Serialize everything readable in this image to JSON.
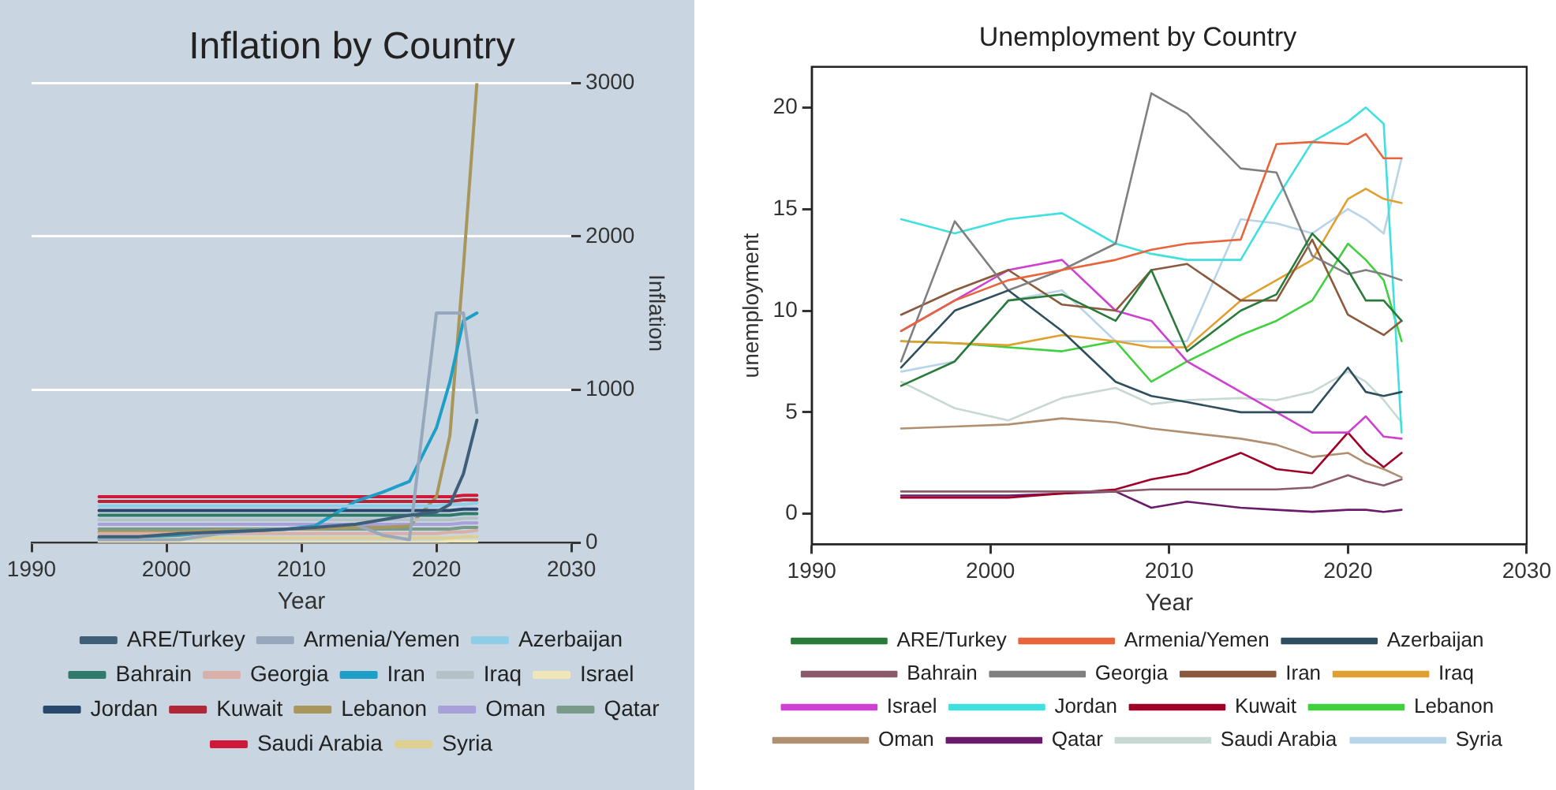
{
  "chart_data": [
    {
      "type": "line",
      "title": "Inflation by Country",
      "xlabel": "Year",
      "ylabel": "Inflation",
      "x": [
        1995,
        1998,
        2001,
        2004,
        2007,
        2009,
        2011,
        2014,
        2016,
        2018,
        2020,
        2021,
        2022,
        2023
      ],
      "xlim": [
        1990,
        2030
      ],
      "xticks": [
        1990,
        2000,
        2010,
        2020,
        2030
      ],
      "ylim": [
        0,
        3000
      ],
      "yticks": [
        0,
        1000,
        2000,
        3000
      ],
      "grid": "y",
      "legend": "bottom",
      "marker": "none",
      "series": [
        {
          "name": "ARE/Turkey",
          "color": "#3f5f78",
          "values": [
            40,
            40,
            60,
            70,
            80,
            90,
            100,
            120,
            150,
            180,
            200,
            250,
            450,
            800
          ]
        },
        {
          "name": "Armenia/Yemen",
          "color": "#98a8bc",
          "values": [
            20,
            20,
            20,
            60,
            80,
            90,
            100,
            120,
            50,
            20,
            1500,
            1500,
            1500,
            850
          ]
        },
        {
          "name": "Azerbaijan",
          "color": "#8ecde8",
          "values": [
            240,
            240,
            240,
            240,
            240,
            240,
            240,
            240,
            240,
            240,
            240,
            250,
            250,
            260
          ]
        },
        {
          "name": "Bahrain",
          "color": "#2f7a6a",
          "values": [
            180,
            180,
            180,
            180,
            180,
            180,
            180,
            180,
            180,
            180,
            180,
            180,
            190,
            190
          ]
        },
        {
          "name": "Georgia",
          "color": "#d8b0a8",
          "values": [
            60,
            60,
            60,
            60,
            60,
            60,
            60,
            60,
            60,
            60,
            60,
            70,
            70,
            80
          ]
        },
        {
          "name": "Iran",
          "color": "#1e9fc8",
          "values": [
            30,
            40,
            50,
            70,
            80,
            90,
            110,
            270,
            330,
            400,
            750,
            1050,
            1450,
            1500
          ]
        },
        {
          "name": "Iraq",
          "color": "#b4c2c8",
          "values": [
            150,
            150,
            150,
            150,
            150,
            150,
            150,
            150,
            150,
            150,
            150,
            150,
            160,
            160
          ]
        },
        {
          "name": "Israel",
          "color": "#f0e6b8",
          "values": [
            0,
            0,
            0,
            0,
            0,
            0,
            0,
            0,
            0,
            0,
            0,
            10,
            10,
            10
          ]
        },
        {
          "name": "Jordan",
          "color": "#28486e",
          "values": [
            210,
            210,
            210,
            210,
            210,
            210,
            210,
            210,
            210,
            210,
            210,
            210,
            220,
            220
          ]
        },
        {
          "name": "Kuwait",
          "color": "#b02838",
          "values": [
            270,
            270,
            270,
            270,
            270,
            270,
            270,
            270,
            270,
            270,
            270,
            270,
            280,
            280
          ]
        },
        {
          "name": "Lebanon",
          "color": "#a8965a",
          "values": [
            70,
            70,
            70,
            80,
            80,
            90,
            90,
            100,
            100,
            110,
            300,
            700,
            1800,
            3000
          ]
        },
        {
          "name": "Oman",
          "color": "#a8a0d8",
          "values": [
            120,
            120,
            120,
            120,
            120,
            120,
            120,
            120,
            120,
            120,
            120,
            120,
            130,
            130
          ]
        },
        {
          "name": "Qatar",
          "color": "#7a9a8a",
          "values": [
            90,
            90,
            90,
            90,
            90,
            90,
            90,
            90,
            90,
            90,
            90,
            90,
            100,
            100
          ]
        },
        {
          "name": "Saudi Arabia",
          "color": "#d01838",
          "values": [
            300,
            300,
            300,
            300,
            300,
            300,
            300,
            300,
            300,
            300,
            300,
            300,
            310,
            310
          ]
        },
        {
          "name": "Syria",
          "color": "#e0d090",
          "values": [
            30,
            30,
            30,
            30,
            30,
            30,
            30,
            30,
            30,
            30,
            30,
            30,
            40,
            40
          ]
        }
      ]
    },
    {
      "type": "line",
      "title": "Unemployment by Country",
      "xlabel": "Year",
      "ylabel": "unemployment",
      "x": [
        1995,
        1998,
        2001,
        2004,
        2007,
        2009,
        2011,
        2014,
        2016,
        2018,
        2020,
        2021,
        2022,
        2023
      ],
      "xlim": [
        1990,
        2030
      ],
      "ylim": [
        -1.5,
        22
      ],
      "xticks": [
        1990,
        2000,
        2010,
        2020,
        2030
      ],
      "yticks": [
        0,
        5,
        10,
        15,
        20
      ],
      "legend": "bottom",
      "marker": "none",
      "series": [
        {
          "name": "ARE/Turkey",
          "color": "#2a7a3a",
          "values": [
            6.3,
            7.5,
            10.5,
            10.8,
            9.5,
            12,
            8,
            10,
            10.8,
            13.8,
            12,
            10.5,
            10.5,
            9.5
          ]
        },
        {
          "name": "Armenia/Yemen",
          "color": "#e8643c",
          "values": [
            9,
            10.5,
            11.5,
            12,
            12.5,
            13,
            13.3,
            13.5,
            18.2,
            18.3,
            18.2,
            18.7,
            17.5,
            17.5
          ]
        },
        {
          "name": "Azerbaijan",
          "color": "#2f4f5f",
          "values": [
            7.2,
            10,
            11,
            9,
            6.5,
            5.8,
            5.5,
            5,
            5,
            5,
            7.2,
            6,
            5.8,
            6
          ]
        },
        {
          "name": "Bahrain",
          "color": "#8b5a6b",
          "values": [
            1.1,
            1.1,
            1.1,
            1.1,
            1.1,
            1.2,
            1.2,
            1.2,
            1.2,
            1.3,
            1.9,
            1.6,
            1.4,
            1.7
          ]
        },
        {
          "name": "Georgia",
          "color": "#808080",
          "values": [
            7.5,
            14.4,
            11,
            12,
            13.3,
            20.7,
            19.7,
            17,
            16.8,
            12.7,
            11.8,
            12,
            11.8,
            11.5
          ]
        },
        {
          "name": "Iran",
          "color": "#8b5a3c",
          "values": [
            9.8,
            11,
            12,
            10.3,
            10,
            12,
            12.3,
            10.5,
            10.5,
            13.5,
            9.8,
            9.3,
            8.8,
            9.5
          ]
        },
        {
          "name": "Iraq",
          "color": "#e0a030",
          "values": [
            8.5,
            8.4,
            8.3,
            8.8,
            8.5,
            8.2,
            8.2,
            10.5,
            11.5,
            12.5,
            15.5,
            16,
            15.5,
            15.3
          ]
        },
        {
          "name": "Israel",
          "color": "#d040d0",
          "values": [
            9,
            10.5,
            12,
            12.5,
            10,
            9.5,
            7.5,
            6,
            5,
            4,
            4,
            4.8,
            3.8,
            3.7
          ]
        },
        {
          "name": "Jordan",
          "color": "#40e0e0",
          "values": [
            14.5,
            13.8,
            14.5,
            14.8,
            13.3,
            12.8,
            12.5,
            12.5,
            15.5,
            18.3,
            19.3,
            20,
            19.2,
            4
          ]
        },
        {
          "name": "Kuwait",
          "color": "#a00028",
          "values": [
            0.8,
            0.8,
            0.8,
            1,
            1.2,
            1.7,
            2,
            3,
            2.2,
            2,
            4,
            3,
            2.3,
            3
          ]
        },
        {
          "name": "Lebanon",
          "color": "#40d040",
          "values": [
            8.5,
            8.4,
            8.2,
            8,
            8.5,
            6.5,
            7.5,
            8.8,
            9.5,
            10.5,
            13.3,
            12.5,
            11.5,
            8.5
          ]
        },
        {
          "name": "Oman",
          "color": "#b09070",
          "values": [
            4.2,
            4.3,
            4.4,
            4.7,
            4.5,
            4.2,
            4,
            3.7,
            3.4,
            2.8,
            3,
            2.5,
            2.2,
            1.8
          ]
        },
        {
          "name": "Qatar",
          "color": "#6a1b6a",
          "values": [
            0.9,
            0.9,
            0.9,
            1,
            1.1,
            0.3,
            0.6,
            0.3,
            0.2,
            0.1,
            0.2,
            0.2,
            0.1,
            0.2
          ]
        },
        {
          "name": "Saudi Arabia",
          "color": "#c8d8d2",
          "values": [
            6.5,
            5.2,
            4.6,
            5.7,
            6.2,
            5.4,
            5.6,
            5.7,
            5.6,
            6,
            7,
            6.5,
            5.6,
            4.5
          ]
        },
        {
          "name": "Syria",
          "color": "#b8d4e8",
          "values": [
            7,
            7.5,
            10.5,
            11,
            8.5,
            8.5,
            8.5,
            14.5,
            14.3,
            13.8,
            15,
            14.5,
            13.8,
            17.5
          ]
        }
      ]
    }
  ]
}
